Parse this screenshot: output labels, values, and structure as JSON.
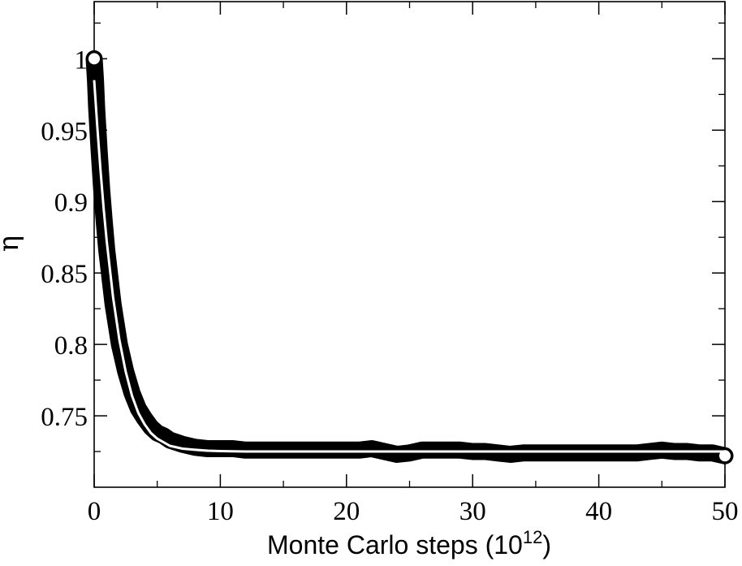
{
  "chart_data": {
    "type": "scatter",
    "xlabel": "Monte Carlo steps (10",
    "xlabel_exponent": "12",
    "xlabel_suffix": ")",
    "ylabel": "η",
    "xlim": [
      0,
      50
    ],
    "ylim": [
      0.7,
      1.04
    ],
    "x_ticks": [
      0,
      10,
      20,
      30,
      40,
      50
    ],
    "y_ticks": [
      0.75,
      0.8,
      0.85,
      0.9,
      0.95,
      1
    ],
    "x_tick_labels": [
      "0",
      "10",
      "20",
      "30",
      "40",
      "50"
    ],
    "y_tick_labels": [
      "0.75",
      "0.8",
      "0.85",
      "0.9",
      "0.95",
      "1"
    ],
    "grid": false,
    "series": [
      {
        "kind": "data",
        "marker": "open-circle",
        "color": "#000000",
        "x": [
          0,
          0.1,
          0.2,
          0.4,
          0.6,
          0.8,
          1,
          1.5,
          2,
          2.5,
          3,
          3.5,
          4,
          4.5,
          5,
          5.5,
          6,
          7,
          8,
          9,
          10,
          11,
          12,
          13,
          14,
          15,
          16,
          17,
          18,
          19,
          20,
          21,
          22,
          23,
          24,
          25,
          26,
          27,
          28,
          29,
          30,
          31,
          32,
          33,
          34,
          35,
          36,
          37,
          38,
          39,
          40,
          41,
          42,
          43,
          44,
          45,
          46,
          47,
          48,
          49,
          50
        ],
        "y": [
          1.0,
          0.985,
          0.965,
          0.935,
          0.908,
          0.886,
          0.866,
          0.828,
          0.8,
          0.781,
          0.766,
          0.755,
          0.748,
          0.742,
          0.738,
          0.736,
          0.733,
          0.73,
          0.728,
          0.727,
          0.727,
          0.727,
          0.726,
          0.726,
          0.726,
          0.726,
          0.726,
          0.726,
          0.726,
          0.726,
          0.726,
          0.726,
          0.727,
          0.725,
          0.723,
          0.724,
          0.726,
          0.726,
          0.726,
          0.726,
          0.725,
          0.725,
          0.724,
          0.723,
          0.724,
          0.724,
          0.724,
          0.724,
          0.724,
          0.724,
          0.724,
          0.724,
          0.724,
          0.724,
          0.725,
          0.726,
          0.725,
          0.725,
          0.724,
          0.724,
          0.722
        ]
      },
      {
        "kind": "fit",
        "color": "#ffffff",
        "x": [
          0,
          0.25,
          0.5,
          0.75,
          1,
          1.5,
          2,
          2.5,
          3,
          3.5,
          4,
          4.5,
          5,
          6,
          7,
          8,
          9,
          10,
          12,
          15,
          20,
          25,
          30,
          35,
          40,
          45,
          50
        ],
        "y": [
          0.985,
          0.952,
          0.922,
          0.895,
          0.872,
          0.833,
          0.803,
          0.781,
          0.764,
          0.752,
          0.744,
          0.738,
          0.734,
          0.729,
          0.727,
          0.7262,
          0.7256,
          0.7253,
          0.725,
          0.725,
          0.725,
          0.725,
          0.725,
          0.725,
          0.725,
          0.725,
          0.725
        ]
      }
    ]
  }
}
